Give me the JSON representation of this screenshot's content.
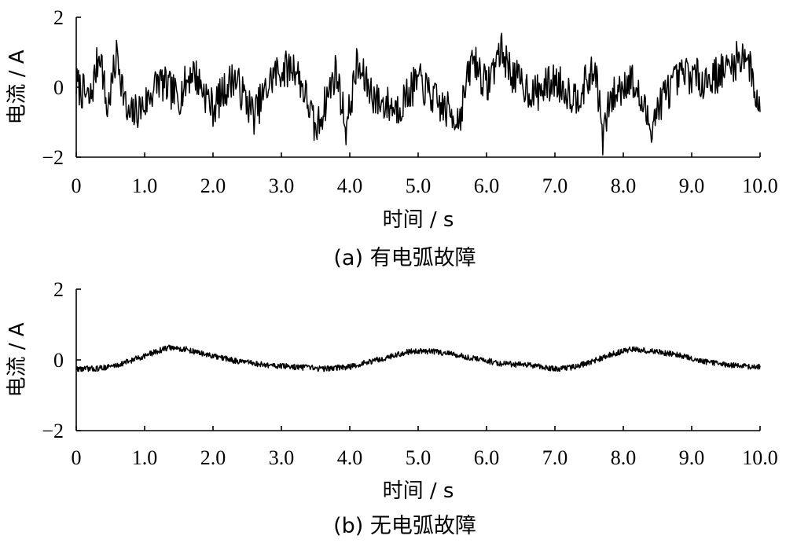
{
  "chart_data": [
    {
      "type": "line",
      "caption": "(a)  有电弧故障",
      "xlabel": "时间 / s",
      "ylabel": "电流 / A",
      "xlim": [
        0,
        10
      ],
      "ylim": [
        -2,
        2
      ],
      "xticks": [
        "0",
        "1.0",
        "2.0",
        "3.0",
        "4.0",
        "5.0",
        "6.0",
        "7.0",
        "8.0",
        "9.0",
        "10.0"
      ],
      "yticks": [
        "−2",
        "0",
        "2"
      ],
      "grid": false,
      "series": [
        {
          "color": "#000000",
          "x": [
            0,
            0.2,
            0.35,
            0.45,
            0.6,
            0.75,
            1.0,
            1.2,
            1.5,
            1.7,
            2.0,
            2.3,
            2.6,
            2.9,
            3.2,
            3.4,
            3.5,
            3.8,
            3.95,
            4.1,
            4.4,
            4.7,
            5.0,
            5.3,
            5.6,
            5.8,
            6.0,
            6.2,
            6.4,
            6.7,
            7.0,
            7.3,
            7.6,
            7.7,
            7.8,
            8.1,
            8.4,
            8.6,
            8.9,
            9.2,
            9.5,
            9.8,
            10.0
          ],
          "y": [
            0.1,
            -0.4,
            1.1,
            -0.7,
            1.0,
            -0.9,
            -0.5,
            0.2,
            -0.3,
            0.5,
            -0.6,
            0.3,
            -0.8,
            0.4,
            0.6,
            -0.5,
            -1.3,
            0.5,
            -1.2,
            0.6,
            -0.4,
            -0.6,
            0.2,
            -0.5,
            -0.9,
            0.9,
            0.0,
            1.1,
            0.3,
            -0.2,
            0.2,
            -0.3,
            0.5,
            -1.5,
            -0.4,
            0.3,
            -1.1,
            -0.2,
            0.4,
            0.2,
            0.5,
            1.0,
            -0.7
          ]
        }
      ]
    },
    {
      "type": "line",
      "caption": "(b)  无电弧故障",
      "xlabel": "时间 / s",
      "ylabel": "电流 / A",
      "xlim": [
        0,
        10
      ],
      "ylim": [
        -2,
        2
      ],
      "xticks": [
        "0",
        "1.0",
        "2.0",
        "3.0",
        "4.0",
        "5.0",
        "6.0",
        "7.0",
        "8.0",
        "9.0",
        "10.0"
      ],
      "yticks": [
        "−2",
        "0",
        "2"
      ],
      "grid": false,
      "series": [
        {
          "color": "#000000",
          "x": [
            0,
            0.3,
            0.6,
            0.9,
            1.2,
            1.35,
            1.6,
            2.0,
            2.4,
            2.8,
            3.2,
            3.6,
            4.0,
            4.3,
            4.6,
            4.9,
            5.1,
            5.4,
            5.8,
            6.2,
            6.6,
            7.0,
            7.3,
            7.6,
            7.9,
            8.1,
            8.4,
            8.8,
            9.2,
            9.6,
            10.0
          ],
          "y": [
            -0.25,
            -0.25,
            -0.15,
            0.05,
            0.25,
            0.35,
            0.3,
            0.1,
            -0.05,
            -0.15,
            -0.2,
            -0.25,
            -0.2,
            -0.05,
            0.1,
            0.25,
            0.25,
            0.2,
            0.05,
            -0.1,
            -0.15,
            -0.25,
            -0.2,
            0.0,
            0.2,
            0.3,
            0.25,
            0.15,
            -0.05,
            -0.15,
            -0.2
          ]
        }
      ]
    }
  ]
}
